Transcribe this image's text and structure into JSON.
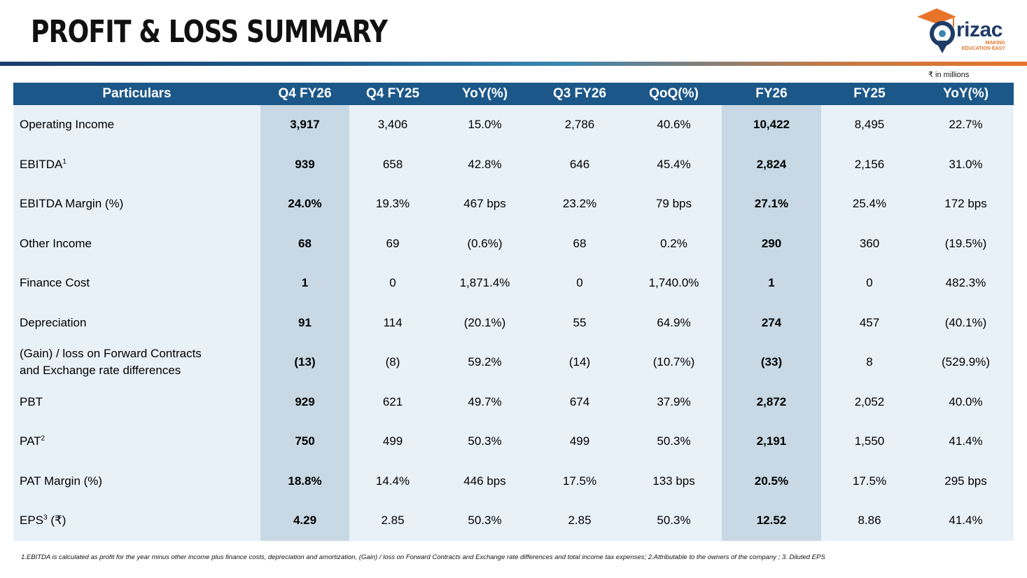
{
  "title": "PROFIT & LOSS SUMMARY",
  "logo": {
    "name": "rizac",
    "tagline_1": "MAKING",
    "tagline_2": "EDUCATION EASY"
  },
  "unit_note": "₹ in millions",
  "colors": {
    "header_bg": "#1c5789",
    "row_bg": "#e9f1f8",
    "highlight_col": "#c8d9e5",
    "accent": "#e8742a"
  },
  "table": {
    "headers": [
      "Particulars",
      "Q4 FY26",
      "Q4 FY25",
      "YoY(%)",
      "Q3 FY26",
      "QoQ(%)",
      "FY26",
      "FY25",
      "YoY(%)"
    ],
    "rows": [
      {
        "label": "Operating Income",
        "sup": "",
        "suffix": "",
        "values": [
          "3,917",
          "3,406",
          "15.0%",
          "2,786",
          "40.6%",
          "10,422",
          "8,495",
          "22.7%"
        ]
      },
      {
        "label": "EBITDA",
        "sup": "1",
        "suffix": "",
        "values": [
          "939",
          "658",
          "42.8%",
          "646",
          "45.4%",
          "2,824",
          "2,156",
          "31.0%"
        ]
      },
      {
        "label": "EBITDA Margin (%)",
        "sup": "",
        "suffix": "",
        "values": [
          "24.0%",
          "19.3%",
          "467 bps",
          "23.2%",
          "79 bps",
          "27.1%",
          "25.4%",
          "172 bps"
        ]
      },
      {
        "label": "Other Income",
        "sup": "",
        "suffix": "",
        "values": [
          "68",
          "69",
          "(0.6%)",
          "68",
          "0.2%",
          "290",
          "360",
          "(19.5%)"
        ]
      },
      {
        "label": "Finance Cost",
        "sup": "",
        "suffix": "",
        "values": [
          "1",
          "0",
          "1,871.4%",
          "0",
          "1,740.0%",
          "1",
          "0",
          "482.3%"
        ]
      },
      {
        "label": "Depreciation",
        "sup": "",
        "suffix": "",
        "values": [
          "91",
          "114",
          "(20.1%)",
          "55",
          "64.9%",
          "274",
          "457",
          "(40.1%)"
        ]
      },
      {
        "label": "(Gain) / loss on Forward Contracts",
        "label_line2": "and Exchange rate differences",
        "sup": "",
        "suffix": "",
        "values": [
          "(13)",
          "(8)",
          "59.2%",
          "(14)",
          "(10.7%)",
          "(33)",
          "8",
          "(529.9%)"
        ]
      },
      {
        "label": "PBT",
        "sup": "",
        "suffix": "",
        "values": [
          "929",
          "621",
          "49.7%",
          "674",
          "37.9%",
          "2,872",
          "2,052",
          "40.0%"
        ]
      },
      {
        "label": "PAT",
        "sup": "2",
        "suffix": "",
        "values": [
          "750",
          "499",
          "50.3%",
          "499",
          "50.3%",
          "2,191",
          "1,550",
          "41.4%"
        ]
      },
      {
        "label": "PAT Margin (%)",
        "sup": "",
        "suffix": "",
        "values": [
          "18.8%",
          "14.4%",
          "446 bps",
          "17.5%",
          "133 bps",
          "20.5%",
          "17.5%",
          "295 bps"
        ]
      },
      {
        "label": "EPS",
        "sup": "3",
        "suffix": " (₹)",
        "values": [
          "4.29",
          "2.85",
          "50.3%",
          "2.85",
          "50.3%",
          "12.52",
          "8.86",
          "41.4%"
        ]
      }
    ]
  },
  "footnote": "1.EBITDA is calculated as profit for the year minus other income plus finance costs, depreciation and amortization, (Gain) / loss on Forward Contracts and Exchange rate differences and total income tax expenses; 2.Attributable to the owners of the company ; 3. Diluted EPS"
}
